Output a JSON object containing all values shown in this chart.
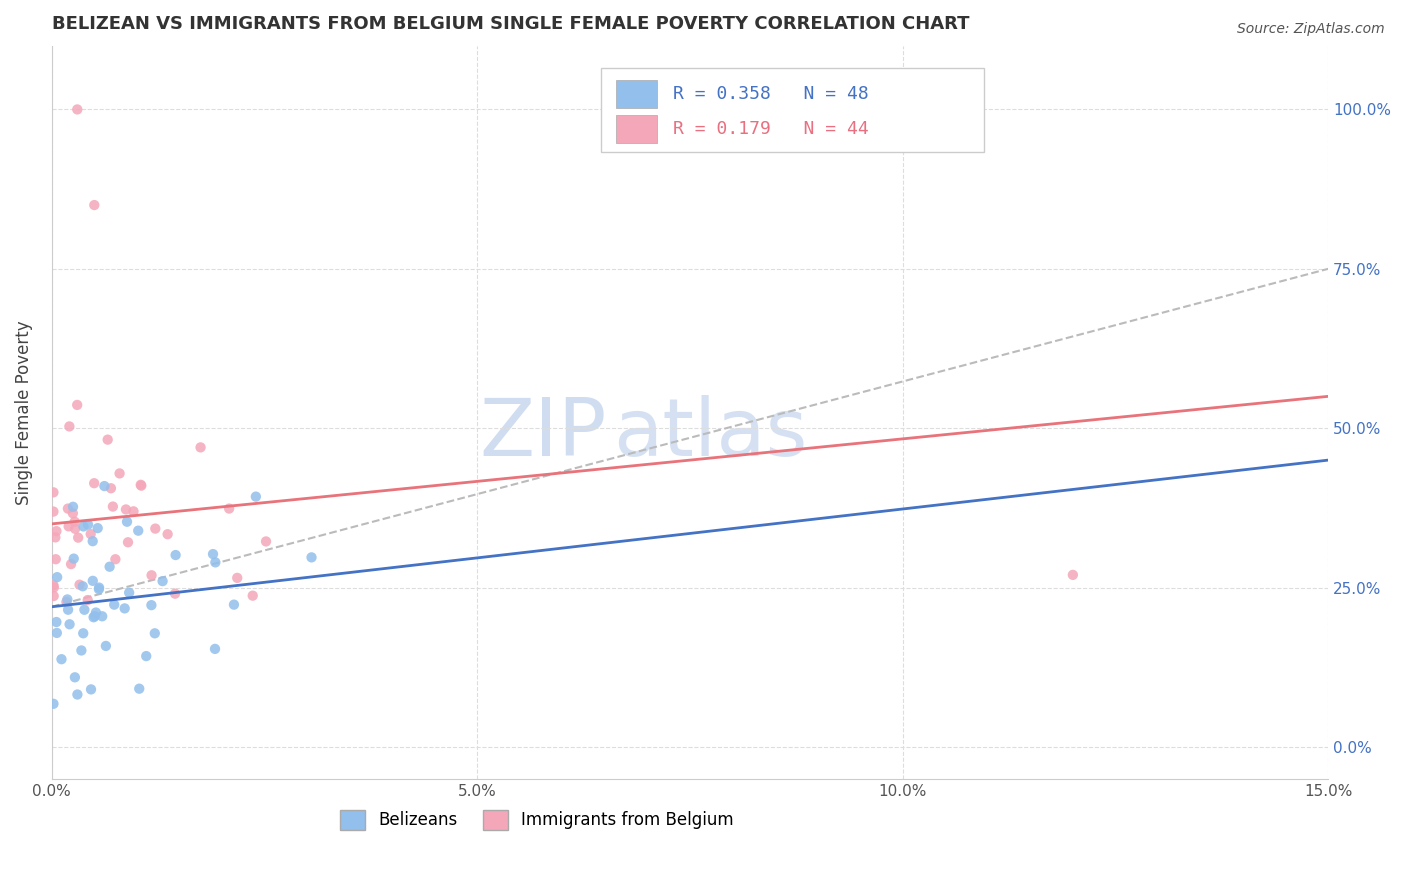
{
  "title": "BELIZEAN VS IMMIGRANTS FROM BELGIUM SINGLE FEMALE POVERTY CORRELATION CHART",
  "source": "Source: ZipAtlas.com",
  "ylabel_label": "Single Female Poverty",
  "x_tick_vals": [
    0.0,
    5.0,
    10.0,
    15.0
  ],
  "y_tick_vals": [
    0.0,
    25.0,
    50.0,
    75.0,
    100.0
  ],
  "xlim": [
    0.0,
    15.0
  ],
  "ylim": [
    -5.0,
    110.0
  ],
  "R_blue": 0.358,
  "N_blue": 48,
  "R_pink": 0.179,
  "N_pink": 44,
  "blue_color": "#92BFEC",
  "pink_color": "#F4A7B9",
  "blue_line_color": "#4472C4",
  "pink_line_color": "#E8737A",
  "ref_line_color": "#BBBBBB",
  "legend_label_blue": "Belizeans",
  "legend_label_pink": "Immigrants from Belgium",
  "blue_line_x0": 0.0,
  "blue_line_y0": 22.0,
  "blue_line_x1": 15.0,
  "blue_line_y1": 45.0,
  "pink_line_x0": 0.0,
  "pink_line_y0": 35.0,
  "pink_line_x1": 15.0,
  "pink_line_y1": 55.0,
  "ref_line_x0": 0.0,
  "ref_line_y0": 22.0,
  "ref_line_x1": 15.0,
  "ref_line_y1": 75.0
}
